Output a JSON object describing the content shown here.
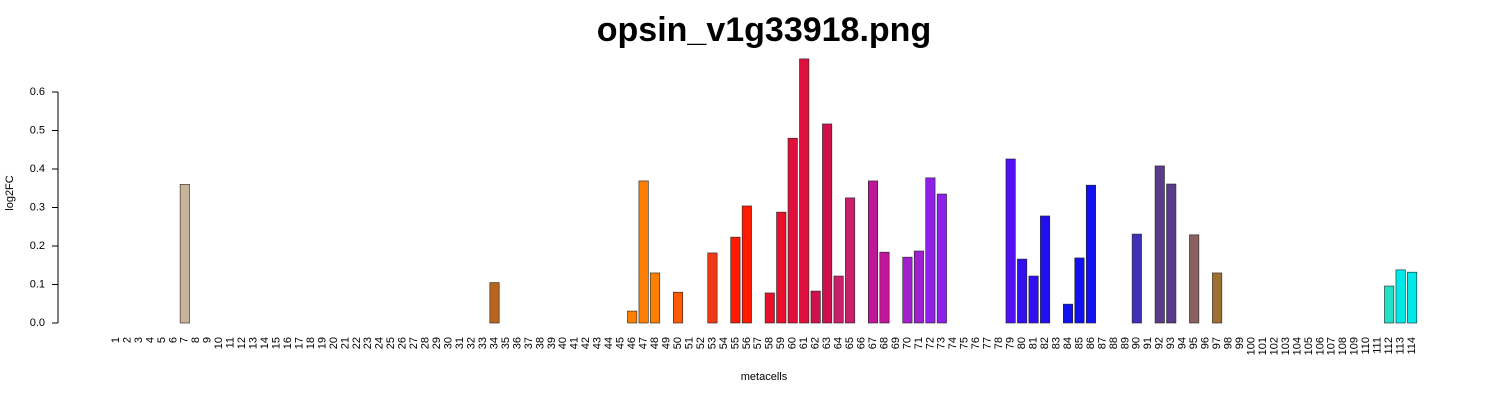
{
  "chart_data": {
    "type": "bar",
    "title": "opsin_v1g33918.png",
    "x_label": "metacells",
    "y_label": "log2FC",
    "categories": [
      "1",
      "2",
      "3",
      "4",
      "5",
      "6",
      "7",
      "8",
      "9",
      "10",
      "11",
      "12",
      "13",
      "14",
      "15",
      "16",
      "17",
      "18",
      "19",
      "20",
      "21",
      "22",
      "23",
      "24",
      "25",
      "26",
      "27",
      "28",
      "29",
      "30",
      "31",
      "32",
      "33",
      "34",
      "35",
      "36",
      "37",
      "38",
      "39",
      "40",
      "41",
      "42",
      "43",
      "44",
      "45",
      "46",
      "47",
      "48",
      "49",
      "50",
      "51",
      "52",
      "53",
      "54",
      "55",
      "56",
      "57",
      "58",
      "59",
      "60",
      "61",
      "62",
      "63",
      "64",
      "65",
      "66",
      "67",
      "68",
      "69",
      "70",
      "71",
      "72",
      "73",
      "74",
      "75",
      "76",
      "77",
      "78",
      "79",
      "80",
      "81",
      "82",
      "83",
      "84",
      "85",
      "86",
      "87",
      "88",
      "89",
      "90",
      "91",
      "92",
      "93",
      "94",
      "95",
      "96",
      "97",
      "98",
      "99",
      "100",
      "101",
      "102",
      "103",
      "104",
      "105",
      "106",
      "107",
      "108",
      "109",
      "110",
      "111",
      "112",
      "113",
      "114"
    ],
    "values": [
      0,
      0,
      0,
      0,
      0,
      0,
      0.36,
      0,
      0,
      0,
      0,
      0,
      0,
      0,
      0,
      0,
      0,
      0,
      0,
      0,
      0,
      0,
      0,
      0,
      0,
      0,
      0,
      0,
      0,
      0,
      0,
      0,
      0,
      0.105,
      0,
      0,
      0,
      0,
      0,
      0,
      0,
      0,
      0,
      0,
      0,
      0.031,
      0.369,
      0.13,
      0,
      0.08,
      0,
      0,
      0.182,
      0,
      0.223,
      0.304,
      0,
      0.078,
      0.288,
      0.48,
      0.686,
      0.083,
      0.517,
      0.122,
      0.325,
      0,
      0.369,
      0.184,
      0,
      0.171,
      0.187,
      0.377,
      0.335,
      0,
      0,
      0,
      0,
      0,
      0.426,
      0.166,
      0.122,
      0.278,
      0,
      0.049,
      0.169,
      0.358,
      0,
      0,
      0,
      0.231,
      0,
      0.408,
      0.361,
      0,
      0.229,
      0,
      0.13,
      0,
      0,
      0,
      0,
      0,
      0,
      0,
      0,
      0,
      0,
      0,
      0,
      0,
      0,
      0.096,
      0.138,
      0.132
    ],
    "colors": [
      "#c8b49a",
      "#c8b49a",
      "#c8b49a",
      "#c8b49a",
      "#c8b49a",
      "#c8b49a",
      "#c8b49a",
      "#c8b49a",
      "#c8b49a",
      "#c8b49a",
      "#c8b49a",
      "#c8b49a",
      "#c8b49a",
      "#c8b49a",
      "#c8b49a",
      "#c8b49a",
      "#c8b49a",
      "#c8b49a",
      "#c8b49a",
      "#c8b49a",
      "#c8b49a",
      "#c8b49a",
      "#c8b49a",
      "#c8b49a",
      "#c8b49a",
      "#c8b49a",
      "#c8b49a",
      "#c8b49a",
      "#c8b49a",
      "#c8b49a",
      "#c8b49a",
      "#c8b49a",
      "#c8b49a",
      "#b5651d",
      "#b5651d",
      "#b5651d",
      "#b5651d",
      "#b5651d",
      "#b5651d",
      "#b5651d",
      "#b5651d",
      "#b5651d",
      "#b5651d",
      "#b5651d",
      "#b5651d",
      "#ff7f00",
      "#ff7f00",
      "#ff7f00",
      "#ff7f00",
      "#ff5a00",
      "#f03c14",
      "#f03c14",
      "#f03c14",
      "#ff1a00",
      "#ff1a00",
      "#ff1a00",
      "#ff1a00",
      "#e8102a",
      "#e8102a",
      "#e0103c",
      "#e0103c",
      "#d0104c",
      "#d0104c",
      "#c8206a",
      "#c8206a",
      "#c0169a",
      "#c0169a",
      "#c0169a",
      "#a020d0",
      "#a020d0",
      "#a020d0",
      "#9020e8",
      "#9020e8",
      "#5010f0",
      "#5010f0",
      "#5010f0",
      "#5010f0",
      "#5010f0",
      "#5010f0",
      "#3010f0",
      "#3010f0",
      "#2010f0",
      "#1010f0",
      "#1010f0",
      "#1010f0",
      "#1010f0",
      "#4030b8",
      "#4030b8",
      "#4030b8",
      "#4030b8",
      "#5a3a8a",
      "#5a3a8a",
      "#5a3a8a",
      "#8a6060",
      "#8a6060",
      "#a07030",
      "#a07030",
      "#30e0d0",
      "#30e0d0",
      "#30e0d0",
      "#30e0d0",
      "#30e0d0",
      "#30e0d0",
      "#30e0d0",
      "#30e0d0",
      "#30e0d0",
      "#30e0d0",
      "#30e0d0",
      "#30e0d0",
      "#30e0d0",
      "#30e0d0",
      "#20e0c8",
      "#00e8e8",
      "#00e8e8"
    ],
    "ylim": [
      0,
      0.7
    ],
    "yticks": [
      {
        "value": 0,
        "label": "0.0"
      },
      0.1,
      0.2,
      0.3,
      0.4,
      0.5,
      0.6
    ]
  }
}
